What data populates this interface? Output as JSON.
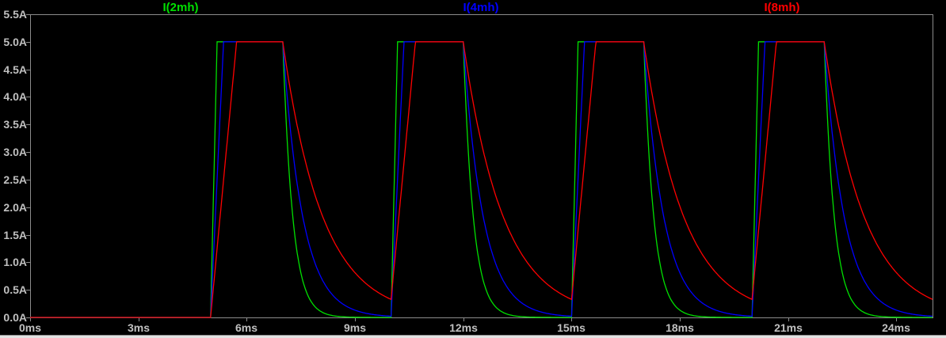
{
  "window": {
    "background": "#000000"
  },
  "legend": {
    "items": [
      {
        "label": "I(2mh)",
        "color": "#00E000"
      },
      {
        "label": "I(4mh)",
        "color": "#0000FF"
      },
      {
        "label": "I(8mh)",
        "color": "#FF0000"
      }
    ]
  },
  "axes": {
    "border_color": "#8C8C8C",
    "tick_color": "#8C8C8C",
    "label_color": "#C0C0C0",
    "x_ticks": [
      {
        "value_ms": 0,
        "label": "0ms"
      },
      {
        "value_ms": 3,
        "label": "3ms"
      },
      {
        "value_ms": 6,
        "label": "6ms"
      },
      {
        "value_ms": 9,
        "label": "9ms"
      },
      {
        "value_ms": 12,
        "label": "12ms"
      },
      {
        "value_ms": 15,
        "label": "15ms"
      },
      {
        "value_ms": 18,
        "label": "18ms"
      },
      {
        "value_ms": 21,
        "label": "21ms"
      },
      {
        "value_ms": 24,
        "label": "24ms"
      }
    ],
    "y_ticks": [
      {
        "value_A": 0.0,
        "label": "0.0A"
      },
      {
        "value_A": 0.5,
        "label": "0.5A"
      },
      {
        "value_A": 1.0,
        "label": "1.0A"
      },
      {
        "value_A": 1.5,
        "label": "1.5A"
      },
      {
        "value_A": 2.0,
        "label": "2.0A"
      },
      {
        "value_A": 2.5,
        "label": "2.5A"
      },
      {
        "value_A": 3.0,
        "label": "3.0A"
      },
      {
        "value_A": 3.5,
        "label": "3.5A"
      },
      {
        "value_A": 4.0,
        "label": "4.0A"
      },
      {
        "value_A": 4.5,
        "label": "4.5A"
      },
      {
        "value_A": 5.0,
        "label": "5.0A"
      },
      {
        "value_A": 5.5,
        "label": "5.5A"
      }
    ]
  },
  "chart_data": {
    "type": "line",
    "title": "",
    "x_unit": "ms",
    "y_unit": "A",
    "xlim_ms": [
      0,
      25
    ],
    "ylim_A": [
      0,
      5.5
    ],
    "grid": false,
    "legend_position": "top-outside",
    "waveform": {
      "description": "Periodic inductor-current pulses: current is 0 A until 5 ms; each cycle ramps linearly (slope V/L) from the residual value, clamps at 5 A for the rest of the 2 ms on-time, then decays exponentially (tau = L/R) during the 3 ms off-time.",
      "first_rise_ms": 5,
      "period_ms": 5,
      "on_time_ms": 2,
      "peak_A": 5,
      "initial_A": 0,
      "pulse_count": 4
    },
    "series": [
      {
        "name": "I(2mh)",
        "color": "#00E000",
        "rise_slope_A_per_ms": 27.8,
        "rise_time_ms": 0.18,
        "decay_tau_ms": 0.275,
        "residual_at_next_rise_A": 0.0
      },
      {
        "name": "I(4mh)",
        "color": "#0000FF",
        "rise_slope_A_per_ms": 13.9,
        "rise_time_ms": 0.36,
        "decay_tau_ms": 0.55,
        "residual_at_next_rise_A": 0.02
      },
      {
        "name": "I(8mh)",
        "color": "#FF0000",
        "rise_slope_A_per_ms": 6.94,
        "rise_time_ms": 0.72,
        "decay_tau_ms": 1.1,
        "residual_at_next_rise_A": 0.33
      }
    ]
  }
}
